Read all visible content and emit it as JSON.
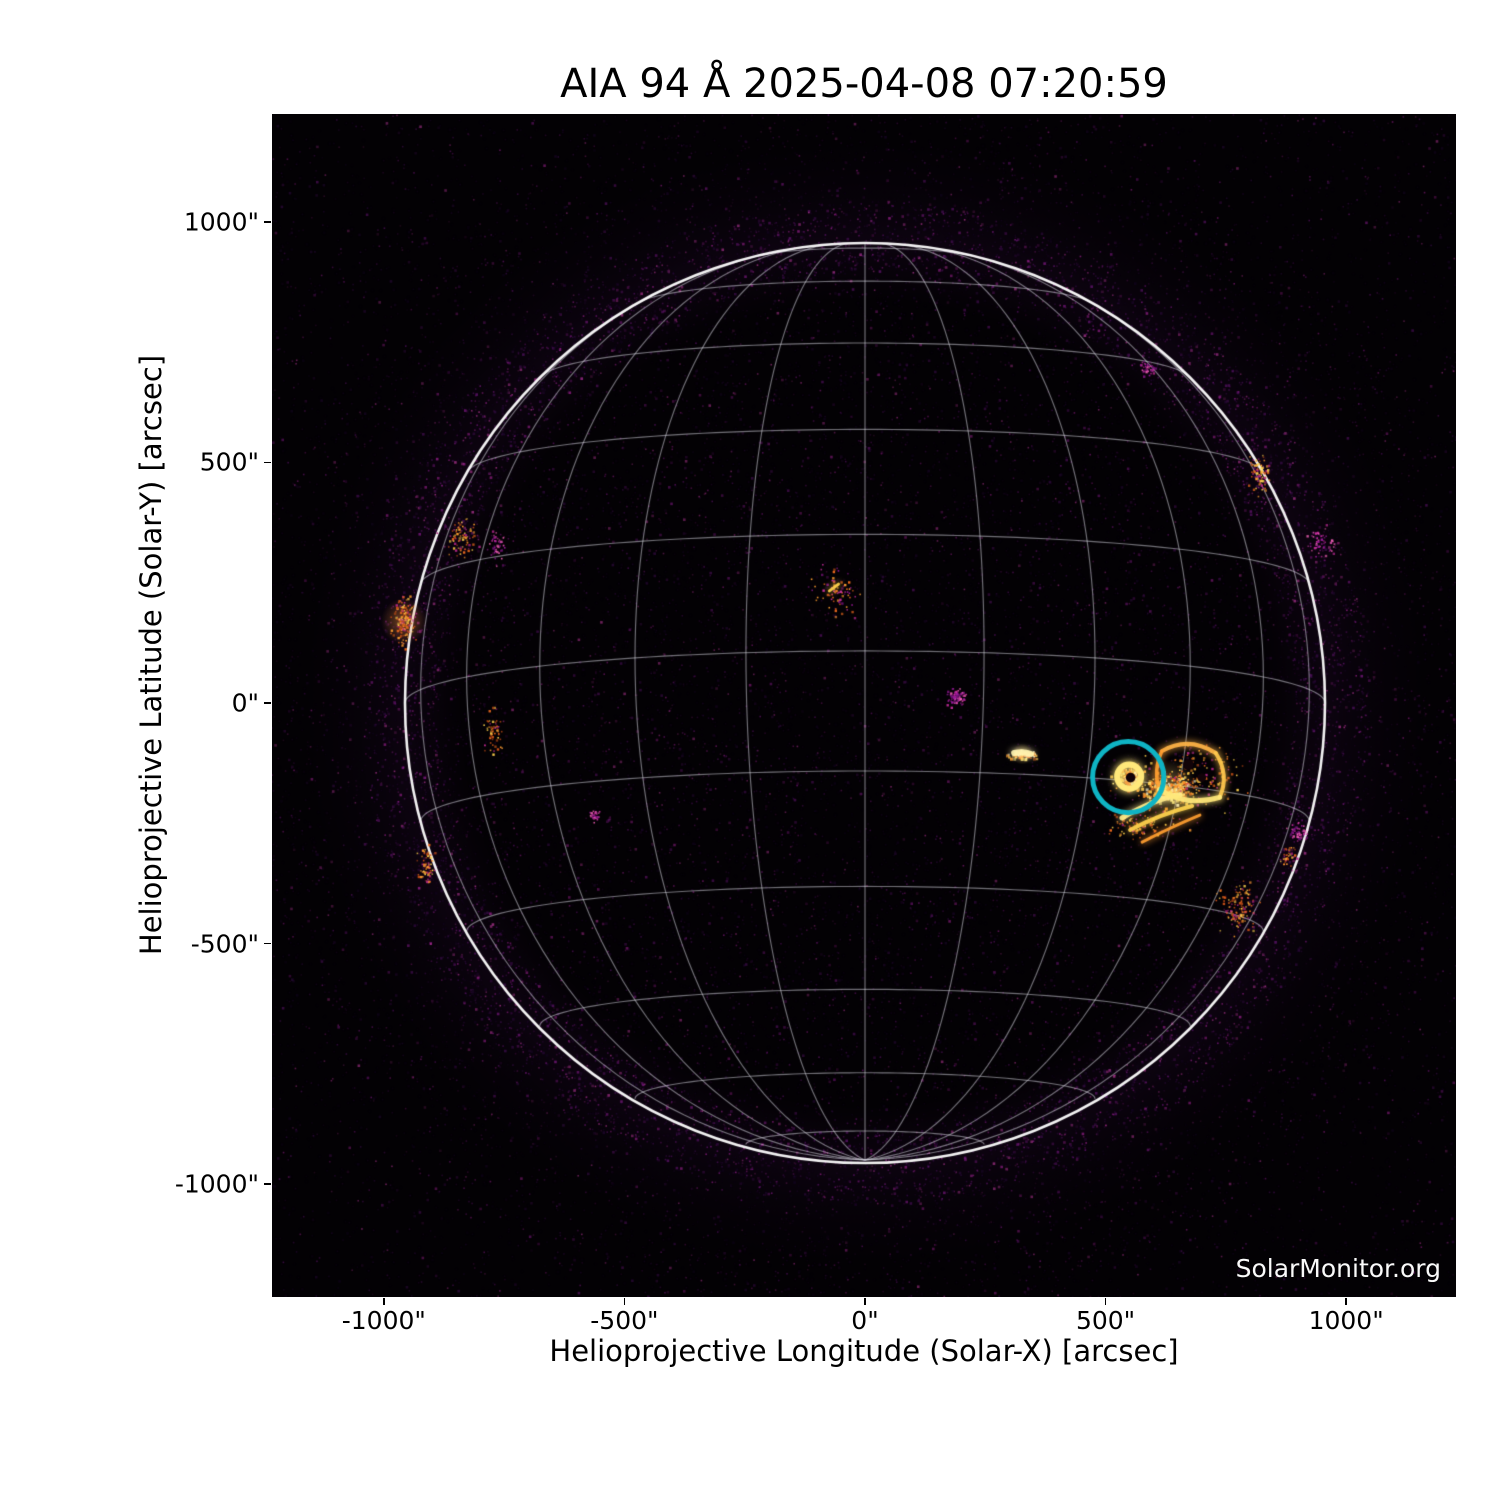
{
  "chart_data": {
    "type": "heatmap",
    "title": "AIA 94 Å 2025-04-08 07:20:59",
    "instrument": "AIA",
    "wavelength": "94 Å",
    "observation_time": "2025-04-08 07:20:59",
    "xlabel": "Helioprojective Longitude (Solar-X) [arcsec]",
    "ylabel": "Helioprojective Latitude (Solar-Y) [arcsec]",
    "xlim": [
      -1232,
      1228
    ],
    "ylim": [
      -1234,
      1224
    ],
    "x_ticks": [
      {
        "label": "-1000\"",
        "arcsec": -1000
      },
      {
        "label": "-500\"",
        "arcsec": -500
      },
      {
        "label": "0\"",
        "arcsec": 0
      },
      {
        "label": "500\"",
        "arcsec": 500
      },
      {
        "label": "1000\"",
        "arcsec": 1000
      }
    ],
    "y_ticks": [
      {
        "label": "1000\"",
        "arcsec": 1000
      },
      {
        "label": "500\"",
        "arcsec": 500
      },
      {
        "label": "0\"",
        "arcsec": 0
      },
      {
        "label": "-500\"",
        "arcsec": -500
      },
      {
        "label": "-1000\"",
        "arcsec": -1000
      }
    ],
    "watermark": "SolarMonitor.org",
    "background_color": "#030104",
    "sun": {
      "radius_arcsec": 956,
      "limb_color": "#ffffff",
      "grid": {
        "spacing_deg": 15,
        "b0_deg": -6.5,
        "color": "#e4e4ee",
        "alpha": 0.5
      }
    },
    "annotation_circle": {
      "solar_x": 547,
      "solar_y": -154,
      "radius_arcsec": 74,
      "color": "#0fb4c4",
      "stroke_px": 5
    },
    "palettes": {
      "bright": [
        "#fff9d6",
        "#ffe87a",
        "#ffc84d",
        "#ff9e30",
        "#ef6a1e"
      ],
      "orange": [
        "#ffd24d",
        "#ff9e30",
        "#ef6a1e",
        "#c94f16",
        "#b02585"
      ],
      "magenta": [
        "#ef5fb5",
        "#c62d9d",
        "#99199a",
        "#6e1273"
      ],
      "faint-orange": [
        "#c62d9d",
        "#ff9e30",
        "#99199a",
        "#ef6a1e"
      ],
      "noise": [
        "#140522",
        "#220833",
        "#320c44",
        "#430f55",
        "#571367",
        "#6f177e",
        "#8a1c90",
        "#a52398",
        "#c13aa0"
      ]
    },
    "features": [
      {
        "name": "ar-complex-core",
        "x": 630,
        "y": -177,
        "sx": 46,
        "sy": 30,
        "palette": "bright",
        "n": 260,
        "glow": 60
      },
      {
        "name": "ar-loop-field",
        "x": 688,
        "y": -150,
        "sx": 85,
        "sy": 55,
        "palette": "orange",
        "n": 170,
        "glow": 0
      },
      {
        "name": "circled-blob",
        "x": 549,
        "y": -153,
        "sx": 30,
        "sy": 23,
        "palette": "bright",
        "n": 170,
        "glow": 40
      },
      {
        "name": "fan-streak-field",
        "x": 575,
        "y": -252,
        "sx": 60,
        "sy": 30,
        "palette": "orange",
        "n": 100,
        "glow": 0
      },
      {
        "name": "bright-dash",
        "x": 327,
        "y": -106,
        "sx": 26,
        "sy": 8,
        "palette": "bright",
        "n": 90,
        "glow": 22
      },
      {
        "name": "center-magenta-blob",
        "x": 187,
        "y": 12,
        "sx": 18,
        "sy": 14,
        "palette": "magenta",
        "n": 80,
        "glow": 0
      },
      {
        "name": "upper-center-cluster",
        "x": -66,
        "y": 231,
        "sx": 45,
        "sy": 42,
        "palette": "faint-orange",
        "n": 75,
        "glow": 0
      },
      {
        "name": "east-limb-bright",
        "x": -958,
        "y": 170,
        "sx": 20,
        "sy": 46,
        "palette": "orange",
        "n": 150,
        "glow": 48
      },
      {
        "name": "east-limb-streaks",
        "x": -842,
        "y": 339,
        "sx": 28,
        "sy": 35,
        "palette": "orange",
        "n": 80,
        "glow": 0
      },
      {
        "name": "east-limb-specks",
        "x": -765,
        "y": 328,
        "sx": 18,
        "sy": 30,
        "palette": "magenta",
        "n": 45,
        "glow": 0
      },
      {
        "name": "east-mid-specks",
        "x": -773,
        "y": -62,
        "sx": 16,
        "sy": 40,
        "palette": "orange",
        "n": 60,
        "glow": 0
      },
      {
        "name": "east-magenta-dot",
        "x": -565,
        "y": -233,
        "sx": 10,
        "sy": 10,
        "palette": "magenta",
        "n": 30,
        "glow": 0
      },
      {
        "name": "east-lower-limb",
        "x": -912,
        "y": -339,
        "sx": 16,
        "sy": 34,
        "palette": "orange",
        "n": 70,
        "glow": 0
      },
      {
        "name": "west-upper-limb",
        "x": 817,
        "y": 476,
        "sx": 18,
        "sy": 34,
        "palette": "orange",
        "n": 85,
        "glow": 0
      },
      {
        "name": "west-limb-magenta",
        "x": 946,
        "y": 335,
        "sx": 26,
        "sy": 26,
        "palette": "magenta",
        "n": 55,
        "glow": 0
      },
      {
        "name": "west-mid-magenta",
        "x": 898,
        "y": -266,
        "sx": 20,
        "sy": 20,
        "palette": "magenta",
        "n": 50,
        "glow": 0
      },
      {
        "name": "west-lower-orange",
        "x": 773,
        "y": -426,
        "sx": 34,
        "sy": 46,
        "palette": "orange",
        "n": 130,
        "glow": 0
      },
      {
        "name": "west-limb-specks",
        "x": 879,
        "y": -318,
        "sx": 16,
        "sy": 20,
        "palette": "orange",
        "n": 40,
        "glow": 0
      },
      {
        "name": "northwest-magenta",
        "x": 584,
        "y": 698,
        "sx": 16,
        "sy": 16,
        "palette": "magenta",
        "n": 40,
        "glow": 0
      }
    ],
    "loop_strokes": [
      {
        "pts": [
          [
            534,
            -239
          ],
          [
            600,
            -200
          ],
          [
            655,
            -191
          ]
        ],
        "w": 5,
        "color": "#ffec8a"
      },
      {
        "pts": [
          [
            551,
            -264
          ],
          [
            615,
            -230
          ],
          [
            680,
            -214
          ]
        ],
        "w": 4,
        "color": "#ffd24d"
      },
      {
        "pts": [
          [
            576,
            -289
          ],
          [
            640,
            -256
          ],
          [
            696,
            -233
          ]
        ],
        "w": 3,
        "color": "#ff9e30"
      },
      {
        "pts": [
          [
            617,
            -100
          ],
          [
            672,
            -68
          ],
          [
            729,
            -104
          ]
        ],
        "w": 4,
        "color": "#ffb347"
      },
      {
        "pts": [
          [
            617,
            -100
          ],
          [
            598,
            -140
          ],
          [
            612,
            -180
          ]
        ],
        "w": 3.5,
        "color": "#ff9e30"
      },
      {
        "pts": [
          [
            729,
            -104
          ],
          [
            758,
            -150
          ],
          [
            737,
            -196
          ]
        ],
        "w": 4,
        "color": "#ffc84d"
      },
      {
        "pts": [
          [
            612,
            -180
          ],
          [
            668,
            -216
          ],
          [
            737,
            -196
          ]
        ],
        "w": 5,
        "color": "#ffe87a"
      },
      {
        "pts": [
          [
            310,
            -104
          ],
          [
            328,
            -100
          ],
          [
            345,
            -106
          ]
        ],
        "w": 6,
        "color": "#fff3b0"
      },
      {
        "pts": [
          [
            -74,
            233
          ],
          [
            -64,
            240
          ],
          [
            -55,
            247
          ]
        ],
        "w": 3,
        "color": "#ffd24d"
      }
    ],
    "bright_rings": [
      {
        "x": 549,
        "y": -153,
        "r": 25,
        "w": 6,
        "color": "#ffe87a"
      }
    ],
    "dark_spots": [
      {
        "x": 552,
        "y": -155,
        "r": 10
      },
      {
        "x": 672,
        "y": -128,
        "r": 11
      },
      {
        "x": 700,
        "y": -155,
        "r": 9
      }
    ],
    "noise_layers": [
      {
        "type": "uniform",
        "n": 12000,
        "amin": 0.12,
        "amax": 0.55
      },
      {
        "type": "disk",
        "r1": 940,
        "n": 7000,
        "amin": 0.12,
        "amax": 0.5
      },
      {
        "type": "annulus",
        "r0": 890,
        "r1": 1045,
        "n": 7000,
        "amin": 0.18,
        "amax": 0.7
      },
      {
        "type": "annulus",
        "r0": 1045,
        "r1": 1280,
        "n": 2600,
        "amin": 0.08,
        "amax": 0.35
      }
    ]
  }
}
